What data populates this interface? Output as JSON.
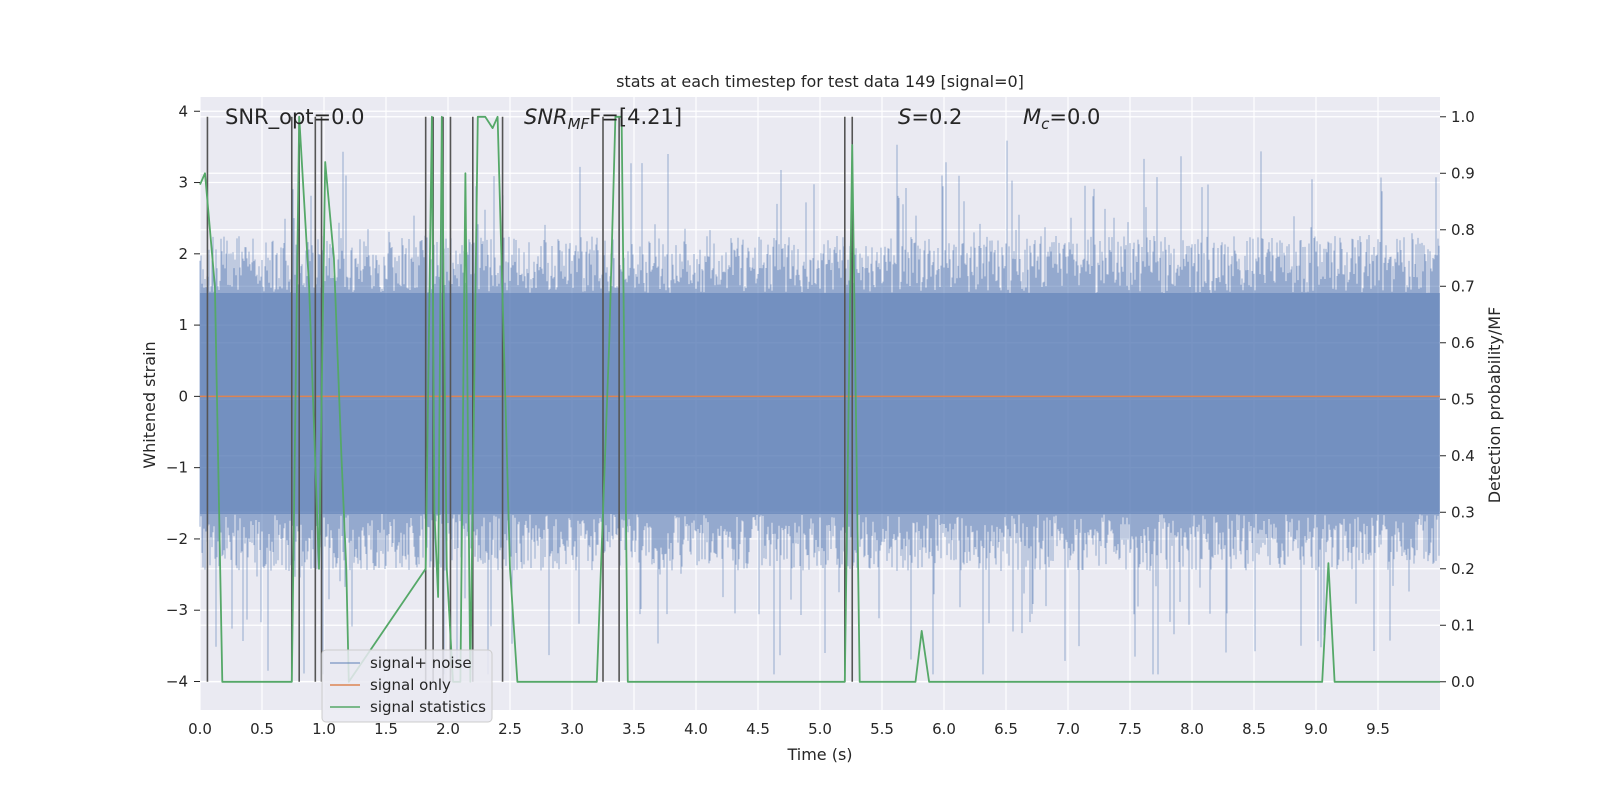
{
  "chart_data": {
    "type": "line",
    "title": "stats at each timestep for test data 149 [signal=0]",
    "xlabel": "Time (s)",
    "ylabel_left": "Whitened strain",
    "ylabel_right": "Detection probability/MF",
    "xlim": [
      0.0,
      10.0
    ],
    "ylim_left": [
      -4.4,
      4.2
    ],
    "ylim_right": [
      -0.05,
      1.035
    ],
    "x_ticks": [
      "0.0",
      "0.5",
      "1.0",
      "1.5",
      "2.0",
      "2.5",
      "3.0",
      "3.5",
      "4.0",
      "4.5",
      "5.0",
      "5.5",
      "6.0",
      "6.5",
      "7.0",
      "7.5",
      "8.0",
      "8.5",
      "9.0",
      "9.5"
    ],
    "x_tick_values": [
      0.0,
      0.5,
      1.0,
      1.5,
      2.0,
      2.5,
      3.0,
      3.5,
      4.0,
      4.5,
      5.0,
      5.5,
      6.0,
      6.5,
      7.0,
      7.5,
      8.0,
      8.5,
      9.0,
      9.5
    ],
    "y_left_ticks": [
      "4",
      "3",
      "2",
      "1",
      "0",
      "−1",
      "−2",
      "−3",
      "−4"
    ],
    "y_left_tick_values": [
      4,
      3,
      2,
      1,
      0,
      -1,
      -2,
      -3,
      -4
    ],
    "y_right_ticks": [
      "1.0",
      "0.9",
      "0.8",
      "0.7",
      "0.6",
      "0.5",
      "0.4",
      "0.3",
      "0.2",
      "0.1",
      "0.0"
    ],
    "y_right_tick_values": [
      1.0,
      0.9,
      0.8,
      0.7,
      0.6,
      0.5,
      0.4,
      0.3,
      0.2,
      0.1,
      0.0
    ],
    "annotations": {
      "snr_opt": "SNR_opt=0.0",
      "snr_mf_main": "SNR",
      "snr_mf_sub": "MF",
      "snr_mf_rest": "F=[4.21]",
      "s_main": "S",
      "s_rest": "=0.2",
      "mc_main": "M",
      "mc_sub": "c",
      "mc_rest": "=0.0"
    },
    "legend": {
      "position": "lower-left",
      "entries": [
        "signal+ noise",
        "signal only",
        "signal statistics"
      ]
    },
    "series": [
      {
        "name": "signal+ noise",
        "axis": "left",
        "color": "#4c72b0",
        "style": "noise band, amplitude mostly within ±1.6, peaks to about ±3.9",
        "core_band": [
          -1.65,
          1.45
        ]
      },
      {
        "name": "signal only",
        "axis": "left",
        "color": "#dd8452",
        "x": [
          0.0,
          10.0
        ],
        "values": [
          0.0,
          0.0
        ]
      },
      {
        "name": "signal statistics",
        "axis": "right",
        "color": "#55a868",
        "x": [
          0.0,
          0.04,
          0.12,
          0.18,
          0.74,
          0.8,
          0.88,
          0.96,
          1.01,
          1.08,
          1.14,
          1.18,
          1.2,
          1.82,
          1.87,
          1.89,
          1.92,
          1.95,
          1.99,
          2.04,
          2.1,
          2.14,
          2.18,
          2.24,
          2.3,
          2.36,
          2.4,
          2.5,
          2.56,
          3.2,
          3.3,
          3.35,
          3.4,
          3.45,
          5.2,
          5.26,
          5.32,
          5.77,
          5.82,
          5.88,
          9.05,
          9.1,
          9.15,
          10.0
        ],
        "values": [
          0.88,
          0.9,
          0.7,
          0.0,
          0.0,
          1.0,
          0.7,
          0.2,
          0.92,
          0.75,
          0.4,
          0.2,
          0.0,
          0.2,
          1.0,
          0.3,
          0.15,
          1.0,
          0.2,
          0.0,
          0.0,
          0.9,
          0.0,
          1.0,
          1.0,
          0.98,
          1.0,
          0.2,
          0.0,
          0.0,
          0.6,
          1.0,
          1.0,
          0.0,
          0.0,
          0.95,
          0.0,
          0.0,
          0.09,
          0.0,
          0.0,
          0.21,
          0.0,
          0.0
        ]
      }
    ],
    "vertical_markers": {
      "color": "#555555",
      "x": [
        0.06,
        0.74,
        0.8,
        0.93,
        0.98,
        1.82,
        1.88,
        1.96,
        2.02,
        2.2,
        2.44,
        3.25,
        3.38,
        5.2,
        5.26
      ],
      "range_right": [
        0.0,
        1.0
      ]
    }
  }
}
